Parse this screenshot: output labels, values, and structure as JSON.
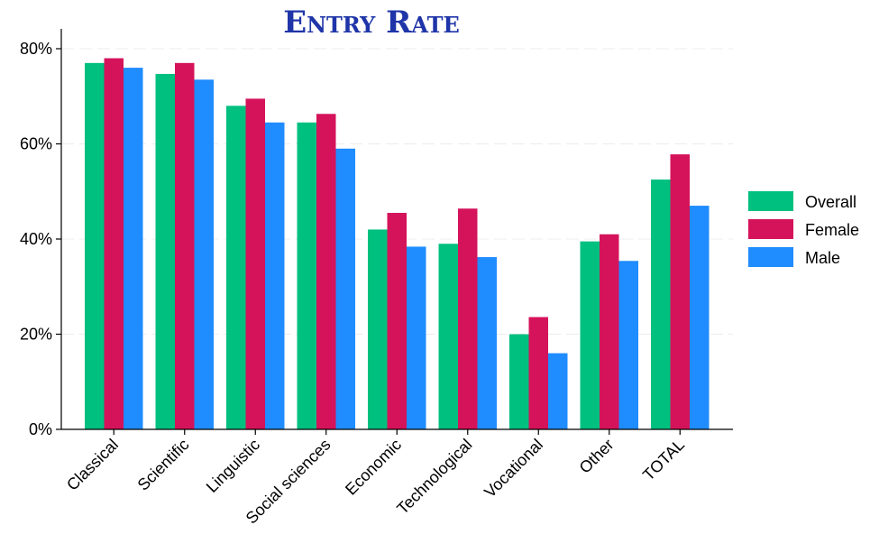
{
  "chart_data": {
    "type": "bar",
    "title": "Entry Rate",
    "xlabel": "",
    "ylabel": "",
    "categories": [
      "Classical",
      "Scientific",
      "Linguistic",
      "Social sciences",
      "Economic",
      "Technological",
      "Vocational",
      "Other",
      "TOTAL"
    ],
    "series": [
      {
        "name": "Overall",
        "color": "#00c07f",
        "values": [
          77,
          74.7,
          68,
          64.5,
          42,
          39,
          20,
          39.5,
          52.5
        ]
      },
      {
        "name": "Female",
        "color": "#d5135a",
        "values": [
          78,
          77,
          69.5,
          66.3,
          45.5,
          46.4,
          23.6,
          41,
          57.8
        ]
      },
      {
        "name": "Male",
        "color": "#1f8cff",
        "values": [
          76,
          73.5,
          64.5,
          59,
          38.4,
          36.2,
          16,
          35.4,
          47
        ]
      }
    ],
    "ylim": [
      0,
      80
    ],
    "yticks": [
      0,
      20,
      40,
      60,
      80
    ],
    "ytick_labels": [
      "0%",
      "20%",
      "40%",
      "60%",
      "80%"
    ],
    "grid": true,
    "legend_position": "right"
  }
}
